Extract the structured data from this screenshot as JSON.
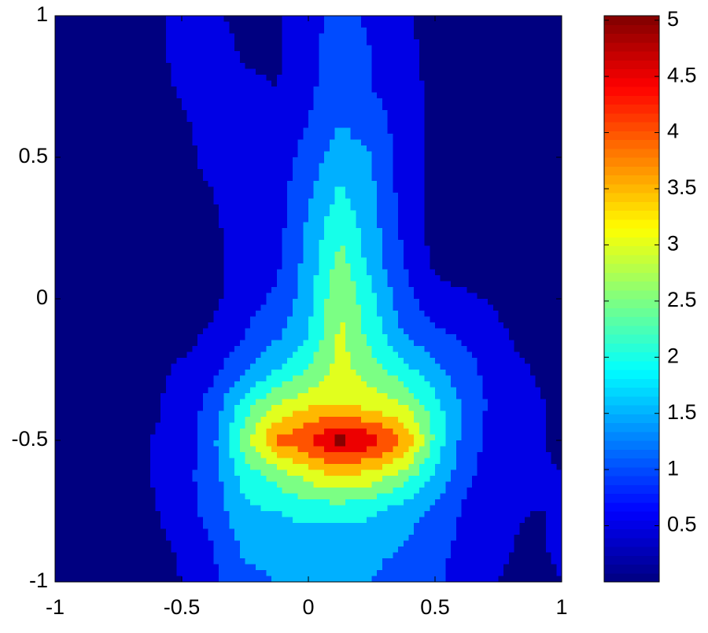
{
  "chart_data": {
    "type": "contour",
    "x": [
      -1,
      -0.875,
      -0.75,
      -0.625,
      -0.5,
      -0.375,
      -0.25,
      -0.125,
      0,
      0.125,
      0.25,
      0.375,
      0.5,
      0.625,
      0.75,
      0.875,
      1
    ],
    "y": [
      1,
      0.875,
      0.75,
      0.625,
      0.5,
      0.375,
      0.25,
      0.125,
      0,
      -0.125,
      -0.25,
      -0.375,
      -0.5,
      -0.625,
      -0.75,
      -0.875,
      -1
    ],
    "z": [
      [
        0.2,
        0.2,
        0.2,
        0.3,
        0.7,
        0.6,
        0.3,
        0.4,
        0.8,
        1.2,
        0.9,
        0.6,
        0.2,
        0.2,
        0.2,
        0.2,
        0.2
      ],
      [
        0.2,
        0.2,
        0.2,
        0.3,
        0.7,
        0.8,
        0.4,
        0.4,
        0.9,
        1.2,
        1.0,
        0.7,
        0.3,
        0.2,
        0.2,
        0.2,
        0.2
      ],
      [
        0.2,
        0.2,
        0.2,
        0.2,
        0.6,
        0.9,
        0.6,
        0.5,
        0.9,
        1.3,
        1.0,
        0.8,
        0.3,
        0.2,
        0.2,
        0.2,
        0.2
      ],
      [
        0.2,
        0.2,
        0.2,
        0.2,
        0.4,
        0.8,
        0.8,
        0.6,
        1.0,
        1.5,
        1.2,
        0.8,
        0.4,
        0.2,
        0.2,
        0.2,
        0.2
      ],
      [
        0.2,
        0.2,
        0.2,
        0.2,
        0.3,
        0.7,
        0.9,
        0.7,
        1.2,
        1.8,
        1.5,
        0.8,
        0.3,
        0.2,
        0.2,
        0.2,
        0.2
      ],
      [
        0.2,
        0.2,
        0.2,
        0.2,
        0.3,
        0.5,
        0.9,
        0.8,
        1.4,
        2.1,
        1.6,
        0.8,
        0.3,
        0.2,
        0.2,
        0.2,
        0.2
      ],
      [
        0.2,
        0.2,
        0.2,
        0.2,
        0.2,
        0.4,
        0.8,
        0.8,
        1.6,
        2.4,
        1.7,
        0.9,
        0.3,
        0.2,
        0.2,
        0.2,
        0.2
      ],
      [
        0.2,
        0.2,
        0.2,
        0.2,
        0.2,
        0.4,
        0.7,
        0.9,
        1.7,
        2.7,
        1.8,
        1.0,
        0.4,
        0.2,
        0.2,
        0.2,
        0.2
      ],
      [
        0.2,
        0.2,
        0.2,
        0.2,
        0.2,
        0.4,
        0.8,
        1.1,
        1.8,
        3.0,
        2.1,
        1.2,
        0.7,
        0.6,
        0.4,
        0.2,
        0.2
      ],
      [
        0.2,
        0.2,
        0.2,
        0.2,
        0.3,
        0.6,
        1.0,
        1.4,
        2.0,
        3.1,
        2.3,
        1.5,
        1.1,
        0.9,
        0.6,
        0.3,
        0.2
      ],
      [
        0.2,
        0.2,
        0.2,
        0.3,
        0.6,
        0.9,
        1.4,
        2.0,
        2.5,
        3.2,
        2.7,
        2.2,
        1.6,
        1.2,
        0.7,
        0.5,
        0.3
      ],
      [
        0.2,
        0.2,
        0.2,
        0.4,
        0.7,
        1.2,
        2.3,
        3.0,
        3.4,
        3.5,
        3.3,
        3.0,
        2.2,
        1.3,
        0.8,
        0.6,
        0.4
      ],
      [
        0.2,
        0.2,
        0.3,
        0.5,
        0.6,
        1.4,
        2.8,
        4.1,
        4.5,
        5.2,
        4.8,
        4.0,
        2.4,
        1.2,
        0.8,
        0.6,
        0.4
      ],
      [
        0.2,
        0.2,
        0.3,
        0.5,
        0.8,
        1.3,
        2.2,
        2.7,
        3.2,
        3.5,
        3.3,
        2.8,
        1.9,
        1.1,
        0.7,
        0.6,
        0.5
      ],
      [
        0.2,
        0.2,
        0.2,
        0.4,
        0.8,
        1.2,
        1.9,
        2.0,
        2.2,
        2.2,
        2.1,
        1.7,
        1.4,
        0.9,
        0.6,
        0.5,
        0.5
      ],
      [
        0.2,
        0.2,
        0.2,
        0.3,
        0.6,
        1.0,
        1.6,
        1.6,
        1.7,
        1.7,
        1.6,
        1.5,
        1.2,
        0.8,
        0.6,
        0.4,
        0.6
      ],
      [
        0.2,
        0.2,
        0.2,
        0.2,
        0.5,
        0.9,
        1.4,
        1.5,
        1.6,
        1.6,
        1.5,
        1.3,
        1.1,
        0.7,
        0.5,
        0.3,
        0.5
      ]
    ],
    "levels": [
      0,
      0.5,
      1,
      1.5,
      2,
      2.5,
      3,
      3.5,
      4,
      4.5,
      5
    ],
    "colormap": "jet",
    "xlim": [
      -1,
      1
    ],
    "ylim": [
      -1,
      1
    ],
    "xticks": [
      -1,
      -0.5,
      0,
      0.5,
      1
    ],
    "yticks": [
      -1,
      -0.5,
      0,
      0.5,
      1
    ],
    "clim": [
      0,
      5.04
    ],
    "cticks": [
      0.5,
      1,
      1.5,
      2,
      2.5,
      3,
      3.5,
      4,
      4.5,
      5
    ]
  }
}
